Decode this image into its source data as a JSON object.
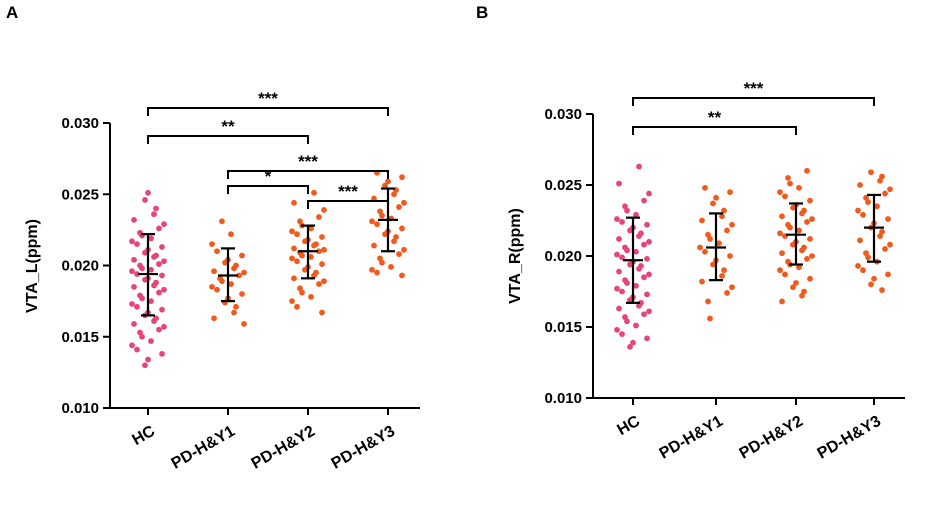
{
  "colors": {
    "hc": "#e8447c",
    "pd": "#f15a1c",
    "axis": "#000000"
  },
  "chart_data": [
    {
      "panel": "A",
      "type": "scatter",
      "title": "",
      "xlabel": "",
      "ylabel": "VTA_L(ppm)",
      "ylim": [
        0.01,
        0.03
      ],
      "yticks": [
        0.01,
        0.015,
        0.02,
        0.025,
        0.03
      ],
      "ytick_labels": [
        "0.010",
        "0.015",
        "0.020",
        "0.025",
        "0.030"
      ],
      "categories": [
        "HC",
        "PD-H&Y1",
        "PD-H&Y2",
        "PD-H&Y3"
      ],
      "groups": [
        {
          "name": "HC",
          "color": "hc",
          "mean": 0.0194,
          "sd_low": 0.0165,
          "sd_high": 0.0222,
          "values": [
            0.0251,
            0.0246,
            0.024,
            0.0236,
            0.0232,
            0.0229,
            0.0226,
            0.0223,
            0.0221,
            0.0219,
            0.0217,
            0.0215,
            0.0213,
            0.0211,
            0.0209,
            0.0207,
            0.0206,
            0.0204,
            0.0203,
            0.0201,
            0.02,
            0.0198,
            0.0197,
            0.0196,
            0.0194,
            0.0193,
            0.0191,
            0.019,
            0.0188,
            0.0186,
            0.0185,
            0.0183,
            0.0181,
            0.0179,
            0.0177,
            0.0175,
            0.0173,
            0.0171,
            0.0169,
            0.0167,
            0.0165,
            0.0163,
            0.0161,
            0.0159,
            0.0157,
            0.0155,
            0.0153,
            0.015,
            0.0147,
            0.0144,
            0.0141,
            0.0138,
            0.0134,
            0.013
          ]
        },
        {
          "name": "PD-H&Y1",
          "color": "pd",
          "mean": 0.0193,
          "sd_low": 0.0175,
          "sd_high": 0.0212,
          "values": [
            0.0231,
            0.0222,
            0.0215,
            0.021,
            0.0207,
            0.0204,
            0.0202,
            0.02,
            0.0198,
            0.0196,
            0.0195,
            0.0193,
            0.0191,
            0.0189,
            0.0187,
            0.0185,
            0.0183,
            0.018,
            0.0177,
            0.0174,
            0.0171,
            0.0167,
            0.0163,
            0.0159
          ]
        },
        {
          "name": "PD-H&Y2",
          "color": "pd",
          "mean": 0.021,
          "sd_low": 0.0191,
          "sd_high": 0.0228,
          "values": [
            0.0251,
            0.0244,
            0.0239,
            0.0234,
            0.0231,
            0.0228,
            0.0226,
            0.0224,
            0.0222,
            0.022,
            0.0218,
            0.0217,
            0.0215,
            0.0214,
            0.0212,
            0.0211,
            0.021,
            0.0209,
            0.0207,
            0.0206,
            0.0205,
            0.0203,
            0.0201,
            0.0199,
            0.0197,
            0.0195,
            0.0193,
            0.0191,
            0.0189,
            0.0187,
            0.0184,
            0.0181,
            0.0178,
            0.0175,
            0.0171,
            0.0167
          ]
        },
        {
          "name": "PD-H&Y3",
          "color": "pd",
          "mean": 0.0232,
          "sd_low": 0.021,
          "sd_high": 0.0254,
          "values": [
            0.0265,
            0.0262,
            0.0259,
            0.0256,
            0.0253,
            0.025,
            0.0247,
            0.0244,
            0.0241,
            0.0238,
            0.0235,
            0.0233,
            0.0231,
            0.0229,
            0.0226,
            0.0224,
            0.0222,
            0.022,
            0.0217,
            0.0214,
            0.0211,
            0.0208,
            0.0205,
            0.0202,
            0.0199,
            0.0197,
            0.0195,
            0.0193
          ]
        }
      ],
      "comparisons": [
        {
          "from": "HC",
          "to": "PD-H&Y3",
          "label": "***"
        },
        {
          "from": "HC",
          "to": "PD-H&Y2",
          "label": "**"
        },
        {
          "from": "PD-H&Y1",
          "to": "PD-H&Y3",
          "label": "***"
        },
        {
          "from": "PD-H&Y1",
          "to": "PD-H&Y2",
          "label": "*"
        },
        {
          "from": "PD-H&Y2",
          "to": "PD-H&Y3",
          "label": "***"
        }
      ]
    },
    {
      "panel": "B",
      "type": "scatter",
      "title": "",
      "xlabel": "",
      "ylabel": "VTA_R(ppm)",
      "ylim": [
        0.01,
        0.03
      ],
      "yticks": [
        0.01,
        0.015,
        0.02,
        0.025,
        0.03
      ],
      "ytick_labels": [
        "0.010",
        "0.015",
        "0.020",
        "0.025",
        "0.030"
      ],
      "categories": [
        "HC",
        "PD-H&Y1",
        "PD-H&Y2",
        "PD-H&Y3"
      ],
      "groups": [
        {
          "name": "HC",
          "color": "hc",
          "mean": 0.0197,
          "sd_low": 0.0167,
          "sd_high": 0.0227,
          "values": [
            0.0263,
            0.0251,
            0.0244,
            0.0239,
            0.0235,
            0.0232,
            0.0229,
            0.0226,
            0.0224,
            0.0222,
            0.022,
            0.0218,
            0.0216,
            0.0214,
            0.0212,
            0.021,
            0.0208,
            0.0206,
            0.0204,
            0.0203,
            0.0201,
            0.0199,
            0.0198,
            0.0196,
            0.0194,
            0.0193,
            0.0191,
            0.0189,
            0.0187,
            0.0185,
            0.0183,
            0.0181,
            0.0179,
            0.0177,
            0.0175,
            0.0173,
            0.0171,
            0.0169,
            0.0167,
            0.0165,
            0.0163,
            0.0161,
            0.0159,
            0.0157,
            0.0154,
            0.0151,
            0.0148,
            0.0145,
            0.0142,
            0.0139,
            0.0136
          ]
        },
        {
          "name": "PD-H&Y1",
          "color": "pd",
          "mean": 0.0206,
          "sd_low": 0.0183,
          "sd_high": 0.023,
          "values": [
            0.0248,
            0.0245,
            0.0241,
            0.0237,
            0.0232,
            0.0228,
            0.0225,
            0.0222,
            0.0218,
            0.0215,
            0.0212,
            0.0209,
            0.0206,
            0.0203,
            0.02,
            0.0197,
            0.0194,
            0.019,
            0.0186,
            0.0182,
            0.0178,
            0.0174,
            0.0168,
            0.0156
          ]
        },
        {
          "name": "PD-H&Y2",
          "color": "pd",
          "mean": 0.0215,
          "sd_low": 0.0194,
          "sd_high": 0.0237,
          "values": [
            0.026,
            0.0255,
            0.0251,
            0.0248,
            0.0245,
            0.0242,
            0.0239,
            0.0236,
            0.0234,
            0.0232,
            0.023,
            0.0228,
            0.0226,
            0.0224,
            0.0222,
            0.022,
            0.0218,
            0.0216,
            0.0214,
            0.0212,
            0.021,
            0.0208,
            0.0206,
            0.0204,
            0.0202,
            0.02,
            0.0198,
            0.0196,
            0.0194,
            0.0192,
            0.019,
            0.0187,
            0.0184,
            0.0181,
            0.0178,
            0.0175,
            0.0172,
            0.0168
          ]
        },
        {
          "name": "PD-H&Y3",
          "color": "pd",
          "mean": 0.022,
          "sd_low": 0.0196,
          "sd_high": 0.0243,
          "values": [
            0.0259,
            0.0256,
            0.0253,
            0.025,
            0.0247,
            0.0244,
            0.0241,
            0.0238,
            0.0235,
            0.0232,
            0.0229,
            0.0226,
            0.0223,
            0.022,
            0.0217,
            0.0214,
            0.0211,
            0.0208,
            0.0205,
            0.0202,
            0.0199,
            0.0196,
            0.0193,
            0.019,
            0.0187,
            0.0184,
            0.018,
            0.0176
          ]
        }
      ],
      "comparisons": [
        {
          "from": "HC",
          "to": "PD-H&Y3",
          "label": "***"
        },
        {
          "from": "HC",
          "to": "PD-H&Y2",
          "label": "**"
        }
      ]
    }
  ]
}
